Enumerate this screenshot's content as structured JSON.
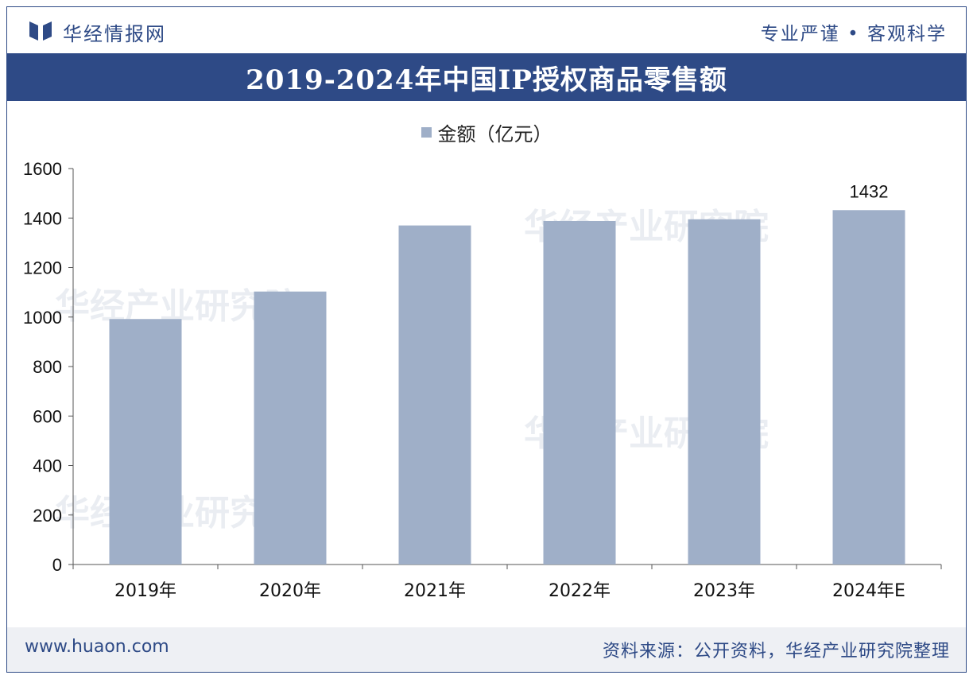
{
  "header": {
    "brand": "华经情报网",
    "slogan": "专业严谨 • 客观科学"
  },
  "footer": {
    "site": "www.huaon.com",
    "source": "资料来源：公开资料，华经产业研究院整理"
  },
  "colors": {
    "accent": "#2e4a86",
    "bar": "#9fafc8"
  },
  "watermark": "华经产业研究院",
  "chart_data": {
    "type": "bar",
    "title": "2019-2024年中国IP授权商品零售额",
    "categories": [
      "2019年",
      "2020年",
      "2021年",
      "2022年",
      "2023年",
      "2024年E"
    ],
    "series": [
      {
        "name": "金额（亿元）",
        "values": [
          992,
          1103,
          1370,
          1388,
          1395,
          1432
        ]
      }
    ],
    "data_labels": [
      {
        "category": "2024年E",
        "text": "1432"
      }
    ],
    "ylim": [
      0,
      1600
    ],
    "yticks": [
      0,
      200,
      400,
      600,
      800,
      1000,
      1200,
      1400,
      1600
    ],
    "xlabel": "",
    "ylabel": "",
    "grid": false,
    "legend": "top-center"
  }
}
